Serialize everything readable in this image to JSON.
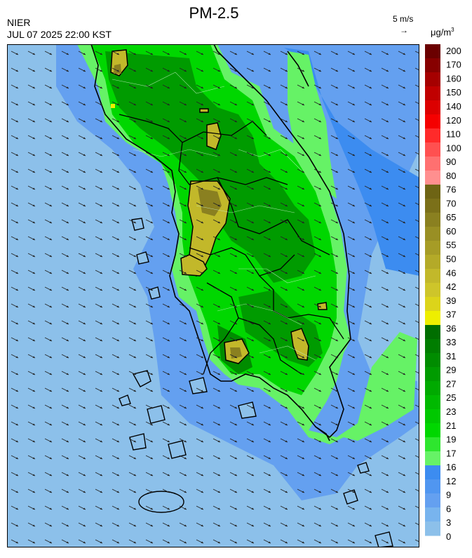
{
  "header": {
    "title": "PM-2.5",
    "agency": "NIER",
    "datetime": "JUL 07 2025 22:00 KST",
    "wind_reference": "5 m/s",
    "wind_reference_arrow": "→",
    "unit_base": "μg/m",
    "unit_exp": "3"
  },
  "legend": {
    "labels": [
      "200",
      "170",
      "160",
      "150",
      "140",
      "120",
      "110",
      "100",
      "90",
      "80",
      "76",
      "70",
      "65",
      "60",
      "55",
      "50",
      "46",
      "42",
      "39",
      "37",
      "36",
      "33",
      "31",
      "29",
      "27",
      "25",
      "23",
      "21",
      "19",
      "17",
      "16",
      "12",
      "9",
      "6",
      "3",
      "0"
    ],
    "colors_top_to_bottom": [
      "#6b0000",
      "#870000",
      "#a50000",
      "#c00000",
      "#dc0000",
      "#f50000",
      "#ff2a2a",
      "#ff5050",
      "#ff7070",
      "#ff8f8f",
      "#6e6414",
      "#7b7019",
      "#8a8020",
      "#998f24",
      "#a69c26",
      "#b4aa28",
      "#c2b82a",
      "#cec52a",
      "#dcd41a",
      "#eeee00",
      "#006e00",
      "#007d00",
      "#008c00",
      "#009b00",
      "#00aa00",
      "#00b900",
      "#00c800",
      "#00d700",
      "#2ee62e",
      "#66f266",
      "#3c8cf0",
      "#5096f0",
      "#64a0f0",
      "#78b4ee",
      "#8cc0ea"
    ]
  },
  "map": {
    "region": "Korean Peninsula (South Korea)",
    "colors": {
      "sea": "#8cc0ea",
      "coast_band": "#64a0f0",
      "land_low": "#66f266",
      "land_mid": "#00d700",
      "land_high": "#009b00",
      "hotspot": "#c2b82a",
      "hotspot_dark": "#8a8020"
    },
    "icons": [
      "wind-vector-arrows",
      "coastline",
      "province-boundaries"
    ]
  }
}
